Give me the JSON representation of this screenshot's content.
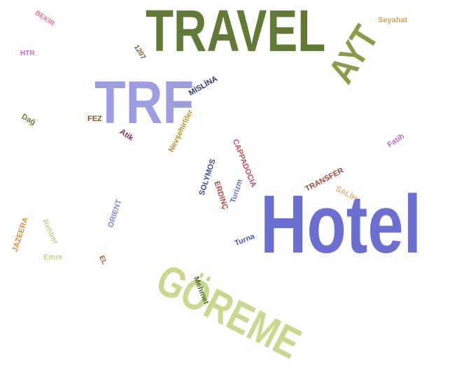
{
  "words": [
    {
      "text": "Hotel",
      "color": "#6b6fcf"
    },
    {
      "text": "TRAVEL",
      "color": "#627a37"
    },
    {
      "text": "GÖREME",
      "color": "#c8d98f"
    },
    {
      "text": "TRF",
      "color": "#9c9ee0"
    },
    {
      "text": "AYT",
      "color": "#8b9b4a"
    },
    {
      "text": "CAPPADOCIA",
      "color": "#c0505a"
    },
    {
      "text": "TRANSFER",
      "color": "#9b4b3a"
    },
    {
      "text": "SOLYMOS",
      "color": "#40489b"
    },
    {
      "text": "ERDINÇ",
      "color": "#b04a4a"
    },
    {
      "text": "Turizm",
      "color": "#6b6fcf"
    },
    {
      "text": "Nevşehirliler",
      "color": "#b8902a"
    },
    {
      "text": "MİSLİNA",
      "color": "#2e3470"
    },
    {
      "text": "Fatih",
      "color": "#c868c8"
    },
    {
      "text": "SALİH",
      "color": "#e8b07a"
    },
    {
      "text": "Turna",
      "color": "#4a58a8"
    },
    {
      "text": "ORIENT",
      "color": "#8888d8"
    },
    {
      "text": "JAZEERA",
      "color": "#d89040"
    },
    {
      "text": "Rehber",
      "color": "#c8d08a"
    },
    {
      "text": "Emre",
      "color": "#c8d08a"
    },
    {
      "text": "EL",
      "color": "#9b6a2a"
    },
    {
      "text": "Mehmet",
      "color": "#4a6a2a"
    },
    {
      "text": "FEZ",
      "color": "#7a5a1a"
    },
    {
      "text": "Atik",
      "color": "#7a2a5a"
    },
    {
      "text": "Dağ",
      "color": "#7a7a3a"
    },
    {
      "text": "HTR",
      "color": "#c868c8"
    },
    {
      "text": "BEKİR",
      "color": "#e07a90"
    },
    {
      "text": "1207",
      "color": "#7a5a2a"
    },
    {
      "text": "Seyahat",
      "color": "#d8a84a"
    }
  ]
}
